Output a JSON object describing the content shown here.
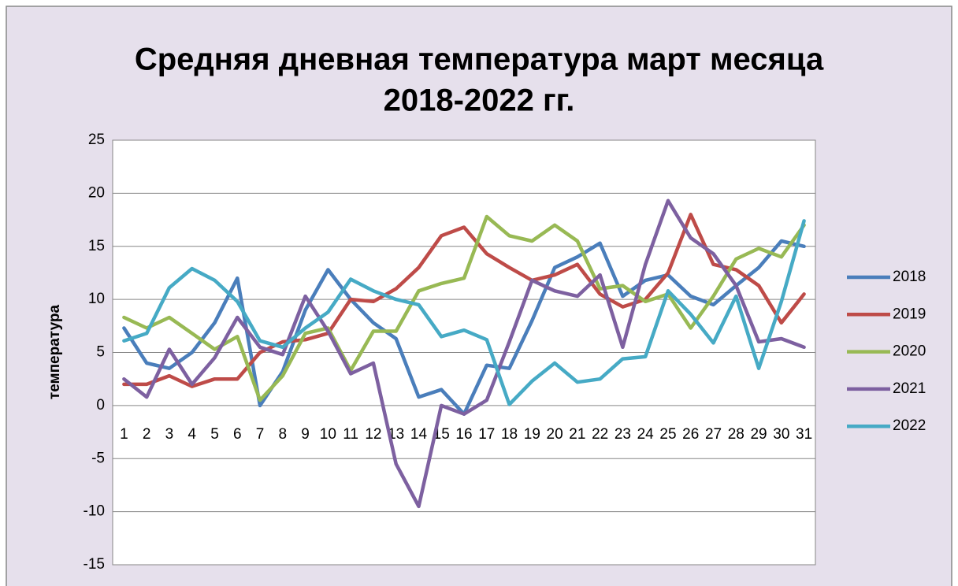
{
  "chart_data": {
    "type": "line",
    "title": [
      "Средняя дневная температура март месяца",
      "2018-2022 гг."
    ],
    "ylabel": "температура",
    "categories": [
      "1",
      "2",
      "3",
      "4",
      "5",
      "6",
      "7",
      "8",
      "9",
      "10",
      "11",
      "12",
      "13",
      "14",
      "15",
      "16",
      "17",
      "18",
      "19",
      "20",
      "21",
      "22",
      "23",
      "24",
      "25",
      "26",
      "27",
      "28",
      "29",
      "30",
      "31"
    ],
    "series": [
      {
        "name": "2018",
        "color": "#4a7ebb",
        "values": [
          7.3,
          4,
          3.5,
          5,
          7.8,
          12,
          0,
          3.2,
          9,
          12.8,
          10,
          7.8,
          6.3,
          0.8,
          1.5,
          -0.8,
          3.8,
          3.5,
          8,
          13,
          14,
          15.3,
          10.3,
          11.8,
          12.3,
          10.3,
          9.5,
          11.3,
          13,
          15.5,
          15
        ]
      },
      {
        "name": "2019",
        "color": "#be4b48",
        "values": [
          2,
          2,
          2.8,
          1.8,
          2.5,
          2.5,
          5,
          6,
          6.2,
          6.8,
          10,
          9.8,
          11,
          13,
          16,
          16.8,
          14.3,
          13,
          11.8,
          12.3,
          13.3,
          10.5,
          9.3,
          10,
          12.5,
          18,
          13.3,
          12.8,
          11.3,
          7.8,
          10.5
        ]
      },
      {
        "name": "2020",
        "color": "#98b954",
        "values": [
          8.3,
          7.3,
          8.3,
          6.8,
          5.3,
          6.5,
          0.5,
          2.8,
          6.8,
          7.3,
          3.3,
          7,
          7,
          10.8,
          11.5,
          12,
          17.8,
          16,
          15.5,
          17,
          15.5,
          11,
          11.3,
          9.8,
          10.5,
          7.3,
          10.3,
          13.8,
          14.8,
          14,
          17
        ]
      },
      {
        "name": "2021",
        "color": "#7d60a0",
        "values": [
          2.5,
          0.8,
          5.3,
          2,
          4.5,
          8.3,
          5.5,
          4.8,
          10.3,
          7,
          3,
          4,
          -5.5,
          -9.5,
          0,
          -0.8,
          0.5,
          6,
          11.8,
          10.8,
          10.3,
          12.3,
          5.5,
          13.3,
          19.3,
          15.8,
          14.3,
          11.3,
          6,
          6.3,
          5.5
        ]
      },
      {
        "name": "2022",
        "color": "#46aac5",
        "values": [
          6.1,
          6.8,
          11.1,
          12.9,
          11.8,
          9.8,
          6.1,
          5.5,
          7.3,
          8.8,
          11.9,
          10.8,
          10,
          9.5,
          6.5,
          7.1,
          6.2,
          0.1,
          2.3,
          4,
          2.2,
          2.5,
          4.4,
          4.6,
          10.8,
          8.6,
          5.9,
          10.3,
          3.5,
          9.8,
          17.4
        ]
      }
    ],
    "ylim": [
      -15,
      25
    ],
    "yticks": [
      -15,
      -10,
      -5,
      0,
      5,
      10,
      15,
      20,
      25
    ],
    "grid": true,
    "legend": "right"
  }
}
